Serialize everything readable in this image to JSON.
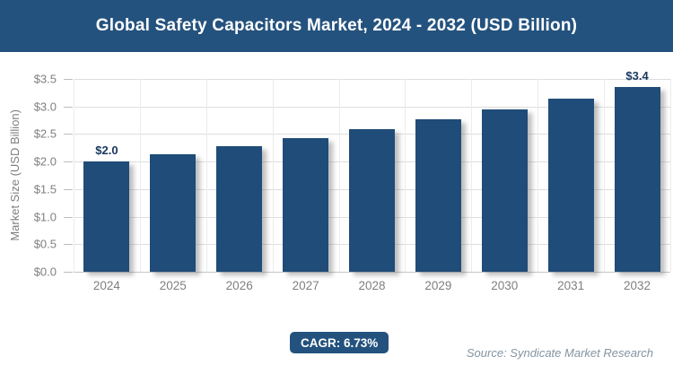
{
  "header": {
    "title": "Global Safety Capacitors Market, 2024 - 2032 (USD Billion)"
  },
  "footer": {
    "cagr_label": "CAGR: 6.73%",
    "source": "Source: Syndicate Market Research"
  },
  "colors": {
    "banner_bg": "#24527E",
    "bar_fill": "#1F4C78",
    "badge_bg": "#24527E",
    "data_label": "#17365D",
    "axis_text": "#7f7f7f",
    "source_text": "#8494a2"
  },
  "chart_data": {
    "type": "bar",
    "title": "Global Safety Capacitors Market, 2024 - 2032 (USD Billion)",
    "categories": [
      "2024",
      "2025",
      "2026",
      "2027",
      "2028",
      "2029",
      "2030",
      "2031",
      "2032"
    ],
    "values": [
      2.0,
      2.13,
      2.28,
      2.43,
      2.59,
      2.77,
      2.95,
      3.15,
      3.36
    ],
    "point_labels": [
      "$2.0",
      "",
      "",
      "",
      "",
      "",
      "",
      "",
      "$3.4"
    ],
    "xlabel": "",
    "ylabel": "Market Size (USD Billion)",
    "ylim": [
      0,
      3.5
    ],
    "y_ticks": [
      "$0.0",
      "$0.5",
      "$1.0",
      "$1.5",
      "$2.0",
      "$2.5",
      "$3.0",
      "$3.5"
    ],
    "y_tick_values": [
      0,
      0.5,
      1.0,
      1.5,
      2.0,
      2.5,
      3.0,
      3.5
    ],
    "grid": true,
    "legend": false,
    "annotations": [
      "CAGR: 6.73%"
    ]
  }
}
